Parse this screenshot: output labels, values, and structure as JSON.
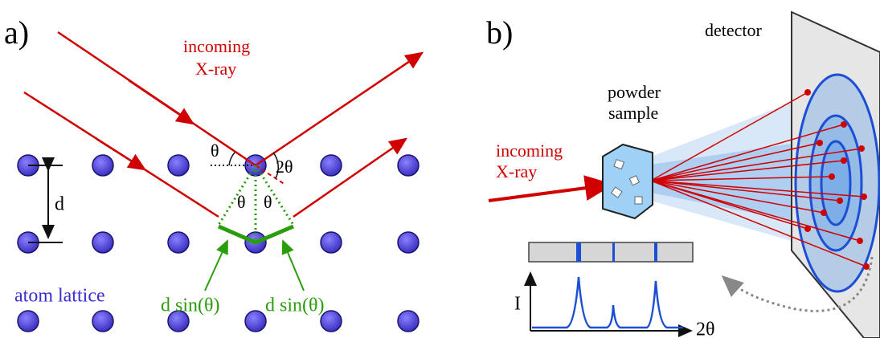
{
  "panel_a": {
    "label": "a)",
    "incoming": "incoming",
    "xray": "X-ray",
    "theta_left": "θ",
    "two_theta": "2θ",
    "theta_mid_left": "θ",
    "theta_mid_right": "θ",
    "spacing": "d",
    "path_left": "d sin(θ)",
    "path_right": "d sin(θ)",
    "lattice": "atom lattice"
  },
  "panel_b": {
    "label": "b)",
    "detector": "detector",
    "powder": "powder",
    "sample": "sample",
    "incoming": "incoming",
    "xray": "X-ray",
    "intensity": "I",
    "angle": "2θ"
  }
}
